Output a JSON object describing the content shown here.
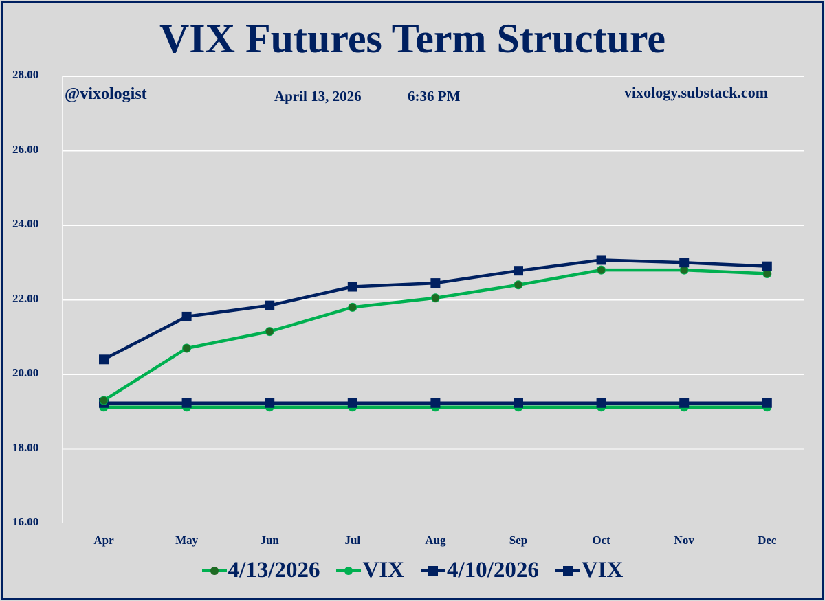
{
  "title": "VIX Futures Term Structure",
  "annotations": {
    "handle": "@vixologist",
    "date": "April 13, 2026",
    "time": "6:36 PM",
    "site": "vixology.substack.com"
  },
  "y_ticks": [
    "28.00",
    "26.00",
    "24.00",
    "22.00",
    "20.00",
    "18.00",
    "16.00"
  ],
  "x_ticks": [
    "Apr",
    "May",
    "Jun",
    "Jul",
    "Aug",
    "Sep",
    "Oct",
    "Nov",
    "Dec"
  ],
  "legend": [
    {
      "label": "4/13/2026",
      "color": "#00b050",
      "marker": "circle",
      "marker_color": "#1e6b23"
    },
    {
      "label": "VIX",
      "color": "#00b050",
      "marker": "circle",
      "marker_color": "#00b050"
    },
    {
      "label": "4/10/2026",
      "color": "#002060",
      "marker": "square",
      "marker_color": "#002060"
    },
    {
      "label": "VIX",
      "color": "#002060",
      "marker": "square",
      "marker_color": "#002060"
    }
  ],
  "colors": {
    "navy": "#002060",
    "green": "#00b050",
    "dark_green": "#1e6b23",
    "background": "#d9d9d9",
    "gridline": "#ffffff"
  },
  "chart_data": {
    "type": "line",
    "title": "VIX Futures Term Structure",
    "xlabel": "",
    "ylabel": "",
    "categories": [
      "Apr",
      "May",
      "Jun",
      "Jul",
      "Aug",
      "Sep",
      "Oct",
      "Nov",
      "Dec"
    ],
    "ylim": [
      16,
      28
    ],
    "y_tick_step": 2,
    "grid": true,
    "legend_position": "bottom",
    "series": [
      {
        "name": "4/13/2026",
        "marker": "circle",
        "color": "#00b050",
        "values": [
          19.3,
          20.7,
          21.15,
          21.8,
          22.05,
          22.4,
          22.8,
          22.8,
          22.7
        ]
      },
      {
        "name": "VIX",
        "marker": "circle",
        "color": "#00b050",
        "values": [
          19.12,
          19.12,
          19.12,
          19.12,
          19.12,
          19.12,
          19.12,
          19.12,
          19.12
        ]
      },
      {
        "name": "4/10/2026",
        "marker": "square",
        "color": "#002060",
        "values": [
          20.4,
          21.55,
          21.85,
          22.35,
          22.45,
          22.78,
          23.07,
          23.0,
          22.9
        ]
      },
      {
        "name": "VIX",
        "marker": "square",
        "color": "#002060",
        "values": [
          19.23,
          19.23,
          19.23,
          19.23,
          19.23,
          19.23,
          19.23,
          19.23,
          19.23
        ]
      }
    ],
    "annotations": [
      "@vixologist",
      "April 13, 2026",
      "6:36 PM",
      "vixology.substack.com"
    ]
  }
}
